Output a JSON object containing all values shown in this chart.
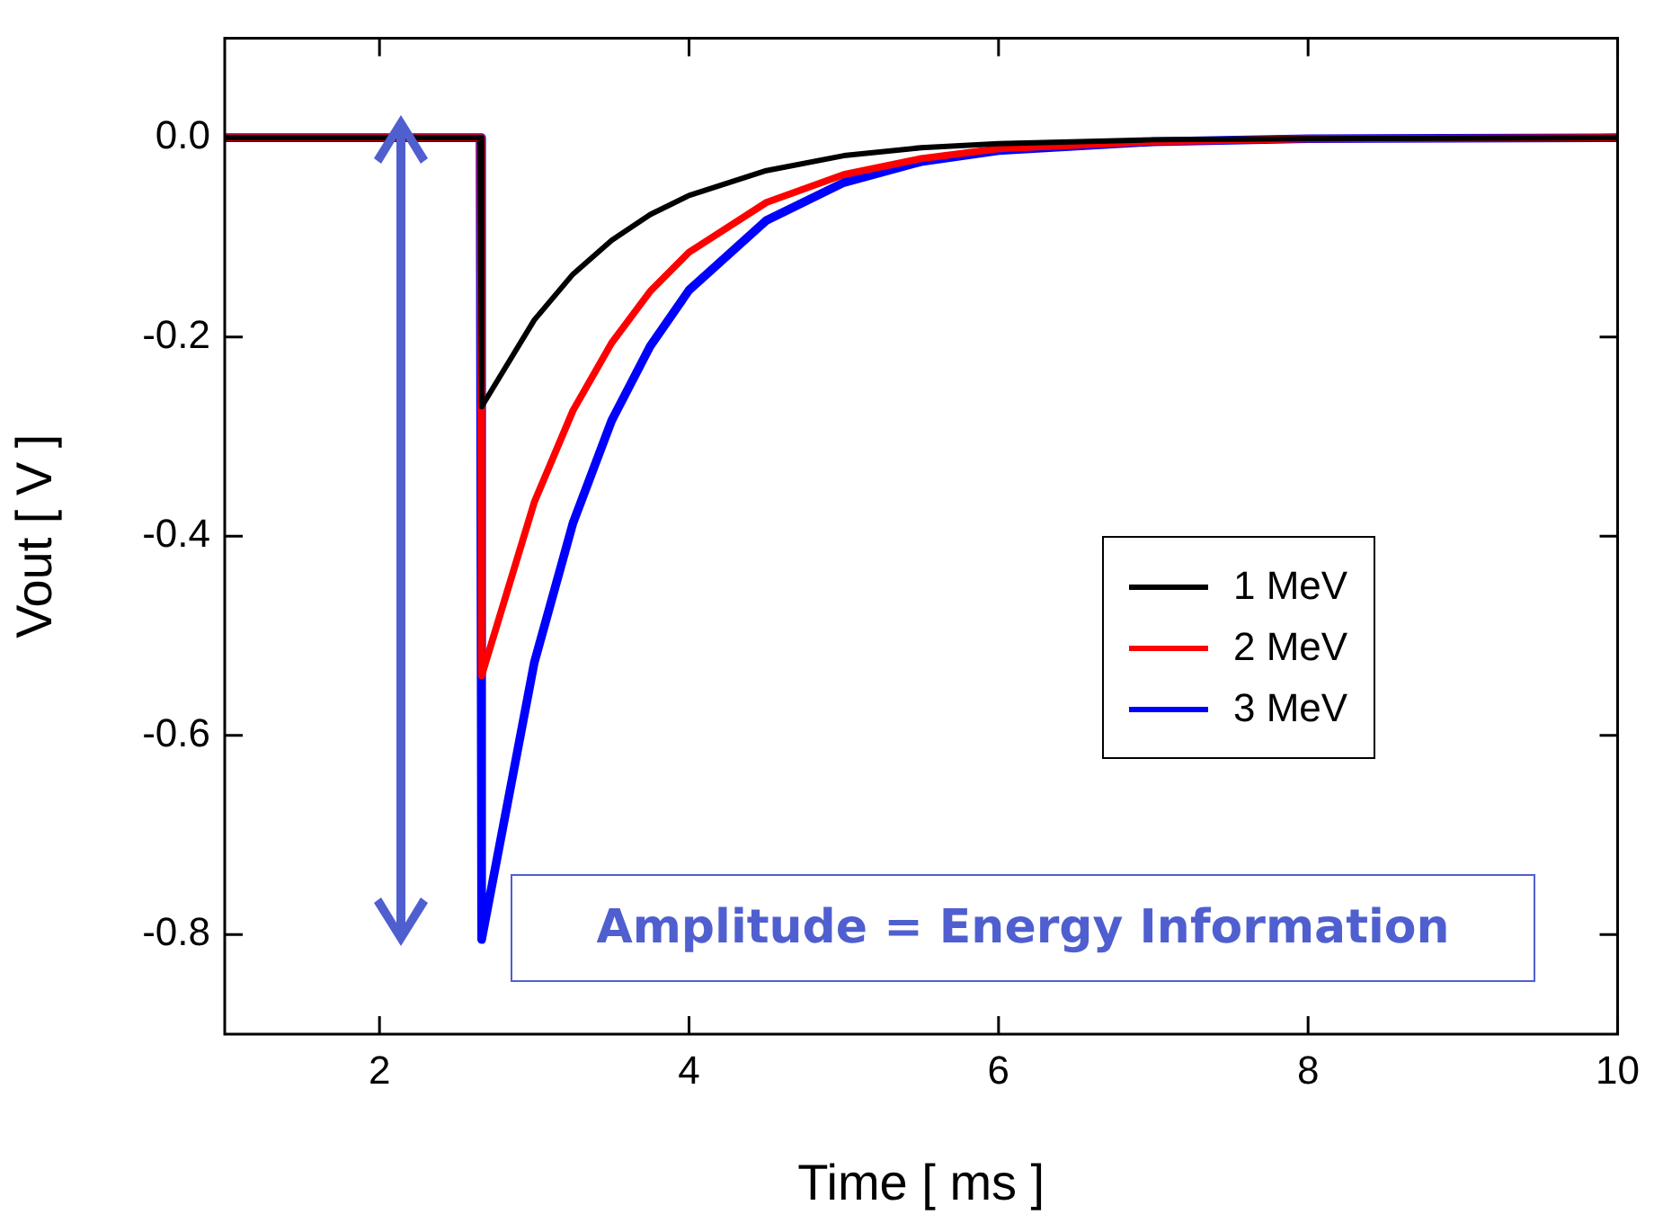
{
  "chart_data": {
    "type": "line",
    "xlabel": "Time [ ms ]",
    "ylabel": "Vout [ V ]",
    "xlim": [
      1,
      10
    ],
    "xticks": [
      2,
      4,
      6,
      8,
      10
    ],
    "ylim": [
      -0.9,
      0.1
    ],
    "yticks": [
      {
        "value": 0,
        "label": "0.0"
      },
      -0.2,
      -0.4,
      -0.6,
      -0.8
    ],
    "grid": false,
    "legend": "right",
    "marker": "none",
    "line_style": "solid",
    "annotations": [
      "Amplitude = Energy Information"
    ],
    "series": [
      {
        "name": "1 MeV",
        "color": "#000000",
        "x": [
          1,
          2.65,
          2.66,
          3,
          3.25,
          3.5,
          3.75,
          4,
          4.5,
          5,
          5.5,
          6,
          7,
          8,
          10
        ],
        "values": [
          0,
          0,
          -0.27,
          -0.183,
          -0.137,
          -0.103,
          -0.077,
          -0.058,
          -0.033,
          -0.018,
          -0.01,
          -0.006,
          -0.002,
          -0.001,
          0
        ]
      },
      {
        "name": "2 MeV",
        "color": "#ff0000",
        "x": [
          1,
          2.65,
          2.66,
          3,
          3.25,
          3.5,
          3.75,
          4,
          4.5,
          5,
          5.5,
          6,
          7,
          8,
          10
        ],
        "values": [
          0,
          0,
          -0.54,
          -0.366,
          -0.274,
          -0.206,
          -0.154,
          -0.115,
          -0.065,
          -0.037,
          -0.021,
          -0.011,
          -0.004,
          -0.001,
          0
        ]
      },
      {
        "name": "3 MeV",
        "color": "#0000ff",
        "x": [
          1,
          2.65,
          2.66,
          3,
          3.25,
          3.5,
          3.75,
          4,
          4.5,
          5,
          5.5,
          6,
          7,
          8,
          10
        ],
        "values": [
          0,
          0,
          -0.805,
          -0.527,
          -0.387,
          -0.284,
          -0.209,
          -0.153,
          -0.083,
          -0.045,
          -0.024,
          -0.013,
          -0.004,
          -0.001,
          0
        ]
      }
    ]
  }
}
